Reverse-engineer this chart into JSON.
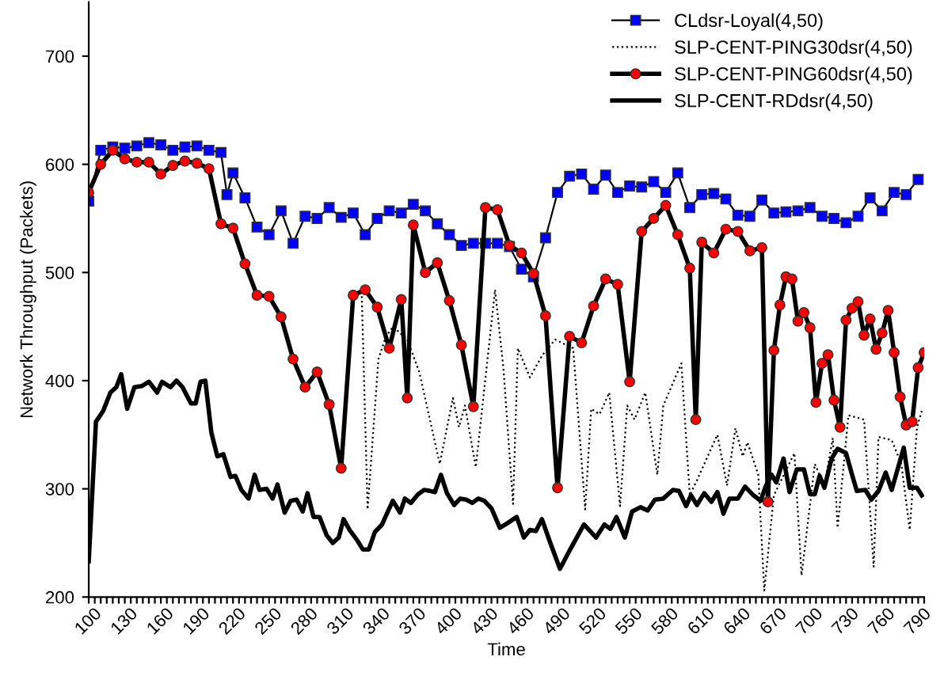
{
  "chart_data": {
    "type": "line",
    "xlabel": "Time",
    "ylabel": "Network Throughput (Packets)",
    "xlim": [
      100,
      795
    ],
    "ylim": [
      200,
      750
    ],
    "yticks": [
      200,
      300,
      400,
      500,
      600,
      700
    ],
    "xticks": [
      100,
      {
        "value": 105,
        "label": null
      },
      {
        "value": 110,
        "label": null
      },
      {
        "value": 115,
        "label": null
      },
      {
        "value": 120,
        "label": null
      },
      {
        "value": 125,
        "label": null
      },
      130,
      {
        "value": 135,
        "label": null
      },
      {
        "value": 140,
        "label": null
      },
      {
        "value": 145,
        "label": null
      },
      {
        "value": 150,
        "label": null
      },
      {
        "value": 155,
        "label": null
      },
      160,
      {
        "value": 165,
        "label": null
      },
      {
        "value": 170,
        "label": null
      },
      {
        "value": 175,
        "label": null
      },
      {
        "value": 180,
        "label": null
      },
      {
        "value": 185,
        "label": null
      },
      190,
      {
        "value": 195,
        "label": null
      },
      {
        "value": 200,
        "label": null
      },
      {
        "value": 205,
        "label": null
      },
      {
        "value": 210,
        "label": null
      },
      {
        "value": 215,
        "label": null
      },
      220,
      {
        "value": 225,
        "label": null
      },
      {
        "value": 230,
        "label": null
      },
      {
        "value": 235,
        "label": null
      },
      {
        "value": 240,
        "label": null
      },
      {
        "value": 245,
        "label": null
      },
      250,
      {
        "value": 255,
        "label": null
      },
      {
        "value": 260,
        "label": null
      },
      {
        "value": 265,
        "label": null
      },
      {
        "value": 270,
        "label": null
      },
      {
        "value": 275,
        "label": null
      },
      280,
      {
        "value": 285,
        "label": null
      },
      {
        "value": 290,
        "label": null
      },
      {
        "value": 295,
        "label": null
      },
      {
        "value": 300,
        "label": null
      },
      {
        "value": 305,
        "label": null
      },
      310,
      {
        "value": 315,
        "label": null
      },
      {
        "value": 320,
        "label": null
      },
      {
        "value": 325,
        "label": null
      },
      {
        "value": 330,
        "label": null
      },
      {
        "value": 335,
        "label": null
      },
      340,
      {
        "value": 345,
        "label": null
      },
      {
        "value": 350,
        "label": null
      },
      {
        "value": 355,
        "label": null
      },
      {
        "value": 360,
        "label": null
      },
      {
        "value": 365,
        "label": null
      },
      370,
      {
        "value": 375,
        "label": null
      },
      {
        "value": 380,
        "label": null
      },
      {
        "value": 385,
        "label": null
      },
      {
        "value": 390,
        "label": null
      },
      {
        "value": 395,
        "label": null
      },
      400,
      {
        "value": 405,
        "label": null
      },
      {
        "value": 410,
        "label": null
      },
      {
        "value": 415,
        "label": null
      },
      {
        "value": 420,
        "label": null
      },
      {
        "value": 425,
        "label": null
      },
      430,
      {
        "value": 435,
        "label": null
      },
      {
        "value": 440,
        "label": null
      },
      {
        "value": 445,
        "label": null
      },
      {
        "value": 450,
        "label": null
      },
      {
        "value": 455,
        "label": null
      },
      460,
      {
        "value": 465,
        "label": null
      },
      {
        "value": 470,
        "label": null
      },
      {
        "value": 475,
        "label": null
      },
      {
        "value": 480,
        "label": null
      },
      {
        "value": 485,
        "label": null
      },
      490,
      {
        "value": 495,
        "label": null
      },
      {
        "value": 500,
        "label": null
      },
      {
        "value": 505,
        "label": null
      },
      {
        "value": 510,
        "label": null
      },
      {
        "value": 515,
        "label": null
      },
      520,
      {
        "value": 525,
        "label": null
      },
      {
        "value": 530,
        "label": null
      },
      {
        "value": 535,
        "label": null
      },
      {
        "value": 540,
        "label": null
      },
      {
        "value": 545,
        "label": null
      },
      550,
      {
        "value": 555,
        "label": null
      },
      {
        "value": 560,
        "label": null
      },
      {
        "value": 565,
        "label": null
      },
      {
        "value": 570,
        "label": null
      },
      {
        "value": 575,
        "label": null
      },
      580,
      {
        "value": 585,
        "label": null
      },
      {
        "value": 590,
        "label": null
      },
      {
        "value": 595,
        "label": null
      },
      {
        "value": 600,
        "label": null
      },
      {
        "value": 605,
        "label": null
      },
      610,
      {
        "value": 615,
        "label": null
      },
      {
        "value": 620,
        "label": null
      },
      {
        "value": 625,
        "label": null
      },
      {
        "value": 630,
        "label": null
      },
      {
        "value": 635,
        "label": null
      },
      640,
      {
        "value": 645,
        "label": null
      },
      {
        "value": 650,
        "label": null
      },
      {
        "value": 655,
        "label": null
      },
      {
        "value": 660,
        "label": null
      },
      {
        "value": 665,
        "label": null
      },
      670,
      {
        "value": 675,
        "label": null
      },
      {
        "value": 680,
        "label": null
      },
      {
        "value": 685,
        "label": null
      },
      {
        "value": 690,
        "label": null
      },
      {
        "value": 695,
        "label": null
      },
      700,
      {
        "value": 705,
        "label": null
      },
      {
        "value": 710,
        "label": null
      },
      {
        "value": 715,
        "label": null
      },
      {
        "value": 720,
        "label": null
      },
      {
        "value": 725,
        "label": null
      },
      730,
      {
        "value": 735,
        "label": null
      },
      {
        "value": 740,
        "label": null
      },
      {
        "value": 745,
        "label": null
      },
      {
        "value": 750,
        "label": null
      },
      {
        "value": 755,
        "label": null
      },
      760,
      {
        "value": 765,
        "label": null
      },
      {
        "value": 770,
        "label": null
      },
      {
        "value": 775,
        "label": null
      },
      {
        "value": 780,
        "label": null
      },
      {
        "value": 785,
        "label": null
      },
      790,
      {
        "value": 795,
        "label": null
      }
    ],
    "grid": false,
    "legend": "top right",
    "series": [
      {
        "name": "CLdsr-Loyal(4,50)",
        "color": "#0000ff",
        "marker": "square",
        "line_style": "solid",
        "x": [
          100,
          110,
          120,
          130,
          140,
          150,
          160,
          170,
          180,
          190,
          200,
          210,
          215,
          220,
          230,
          240,
          250,
          260,
          270,
          280,
          290,
          300,
          310,
          320,
          330,
          340,
          350,
          360,
          370,
          380,
          390,
          400,
          410,
          420,
          430,
          440,
          450,
          460,
          470,
          480,
          490,
          500,
          510,
          520,
          530,
          540,
          550,
          560,
          570,
          580,
          590,
          600,
          610,
          620,
          630,
          640,
          650,
          660,
          670,
          680,
          690,
          700,
          710,
          720,
          730,
          740,
          750,
          760,
          770,
          780,
          790
        ],
        "values": [
          566,
          613,
          616,
          615,
          617,
          620,
          618,
          613,
          616,
          617,
          613,
          611,
          572,
          592,
          569,
          542,
          535,
          557,
          527,
          552,
          550,
          560,
          551,
          555,
          535,
          550,
          557,
          555,
          563,
          557,
          545,
          535,
          525,
          527,
          527,
          527,
          524,
          503,
          496,
          532,
          574,
          589,
          591,
          577,
          590,
          574,
          580,
          579,
          584,
          574,
          592,
          560,
          572,
          573,
          568,
          553,
          552,
          567,
          555,
          556,
          557,
          560,
          552,
          550,
          546,
          552,
          569,
          557,
          574,
          572,
          586
        ]
      },
      {
        "name": "SLP-CENT-PING30dsr(4,50)",
        "color": "#000000",
        "marker": "none",
        "line_style": "dotted",
        "x": [
          100,
          110,
          120,
          130,
          140,
          150,
          160,
          170,
          180,
          190,
          200,
          210,
          220,
          230,
          240,
          250,
          260,
          270,
          280,
          290,
          300,
          310,
          320,
          327,
          332,
          341,
          347,
          353,
          365,
          375,
          392,
          403,
          408,
          413,
          422,
          438,
          445,
          453,
          457,
          467,
          477,
          488,
          503,
          513,
          518,
          525,
          533,
          542,
          548,
          554,
          563,
          573,
          578,
          593,
          600,
          606,
          623,
          631,
          638,
          644,
          648,
          657,
          662,
          670,
          687,
          693,
          704,
          712,
          719,
          723,
          732,
          745,
          753,
          757,
          768,
          776,
          783,
          789,
          793
        ],
        "values": [
          574,
          600,
          613,
          605,
          602,
          602,
          591,
          599,
          603,
          601,
          596,
          545,
          541,
          508,
          479,
          478,
          459,
          420,
          394,
          408,
          378,
          319,
          479,
          484,
          281,
          420,
          440,
          450,
          438,
          408,
          323,
          384,
          357,
          377,
          320,
          484,
          411,
          286,
          430,
          403,
          423,
          438,
          430,
          281,
          374,
          369,
          389,
          284,
          377,
          364,
          389,
          313,
          377,
          416,
          294,
          308,
          350,
          303,
          356,
          330,
          343,
          313,
          206,
          294,
          333,
          220,
          323,
          303,
          347,
          264,
          368,
          364,
          228,
          348,
          345,
          323,
          262,
          357,
          372
        ]
      },
      {
        "name": "SLP-CENT-PING60dsr(4,50)",
        "color": "#ff0000",
        "marker": "circle",
        "line_style": "solid",
        "x": [
          100,
          110,
          120,
          130,
          140,
          150,
          160,
          170,
          180,
          190,
          200,
          210,
          220,
          230,
          240,
          250,
          260,
          270,
          280,
          290,
          300,
          310,
          320,
          330,
          340,
          350,
          360,
          365,
          370,
          380,
          390,
          400,
          410,
          420,
          430,
          440,
          450,
          460,
          470,
          480,
          490,
          500,
          510,
          520,
          530,
          540,
          550,
          560,
          570,
          580,
          590,
          600,
          605,
          610,
          620,
          630,
          640,
          650,
          660,
          665,
          670,
          675,
          680,
          685,
          690,
          695,
          700,
          705,
          710,
          715,
          720,
          725,
          730,
          735,
          740,
          745,
          750,
          755,
          760,
          765,
          770,
          775,
          780,
          785,
          790,
          795
        ],
        "values": [
          574,
          600,
          613,
          605,
          602,
          602,
          591,
          599,
          603,
          601,
          596,
          545,
          541,
          508,
          479,
          478,
          459,
          420,
          394,
          408,
          378,
          319,
          479,
          484,
          468,
          430,
          475,
          384,
          544,
          500,
          509,
          474,
          433,
          376,
          560,
          558,
          525,
          518,
          499,
          460,
          301,
          441,
          435,
          469,
          494,
          489,
          399,
          538,
          550,
          562,
          535,
          504,
          364,
          528,
          518,
          540,
          538,
          520,
          523,
          288,
          428,
          470,
          496,
          494,
          455,
          463,
          449,
          380,
          416,
          424,
          382,
          357,
          456,
          467,
          473,
          442,
          457,
          429,
          444,
          465,
          426,
          385,
          359,
          362,
          412,
          426
        ]
      },
      {
        "name": "SLP-CENT-RDdsr(4,50)",
        "color": "#000000",
        "marker": "none",
        "line_style": "solid",
        "x": [
          100,
          106,
          112,
          118,
          123,
          127,
          132,
          138,
          144,
          150,
          157,
          161,
          168,
          173,
          178,
          185,
          189,
          193,
          197,
          202,
          207,
          212,
          218,
          222,
          227,
          233,
          238,
          242,
          248,
          253,
          257,
          263,
          268,
          273,
          278,
          282,
          287,
          292,
          298,
          303,
          308,
          312,
          317,
          323,
          328,
          333,
          338,
          344,
          348,
          353,
          359,
          363,
          368,
          374,
          379,
          384,
          388,
          393,
          398,
          404,
          409,
          414,
          419,
          424,
          429,
          435,
          442,
          448,
          456,
          462,
          467,
          472,
          477,
          484,
          492,
          501,
          512,
          522,
          529,
          534,
          539,
          546,
          552,
          559,
          565,
          571,
          578,
          586,
          591,
          597,
          601,
          606,
          612,
          618,
          623,
          628,
          633,
          640,
          646,
          653,
          659,
          663,
          668,
          672,
          678,
          683,
          689,
          695,
          700,
          704,
          708,
          712,
          718,
          723,
          730,
          735,
          739,
          746,
          751,
          757,
          763,
          768,
          778,
          783,
          789,
          793
        ],
        "values": [
          233,
          362,
          372,
          389,
          394,
          406,
          374,
          394,
          395,
          399,
          389,
          399,
          394,
          400,
          394,
          379,
          379,
          399,
          400,
          352,
          330,
          332,
          311,
          312,
          299,
          291,
          313,
          299,
          300,
          291,
          304,
          278,
          289,
          290,
          279,
          296,
          274,
          274,
          257,
          250,
          255,
          272,
          262,
          253,
          244,
          244,
          260,
          267,
          277,
          289,
          278,
          291,
          287,
          295,
          299,
          298,
          297,
          313,
          296,
          285,
          291,
          290,
          287,
          291,
          289,
          282,
          264,
          268,
          274,
          255,
          262,
          261,
          272,
          250,
          226,
          245,
          267,
          255,
          267,
          263,
          274,
          255,
          279,
          283,
          280,
          290,
          291,
          299,
          298,
          284,
          294,
          285,
          296,
          288,
          297,
          277,
          291,
          291,
          302,
          294,
          289,
          302,
          313,
          306,
          328,
          297,
          318,
          318,
          295,
          295,
          312,
          301,
          328,
          337,
          333,
          313,
          298,
          299,
          290,
          298,
          315,
          299,
          338,
          301,
          301,
          294
        ]
      }
    ]
  }
}
